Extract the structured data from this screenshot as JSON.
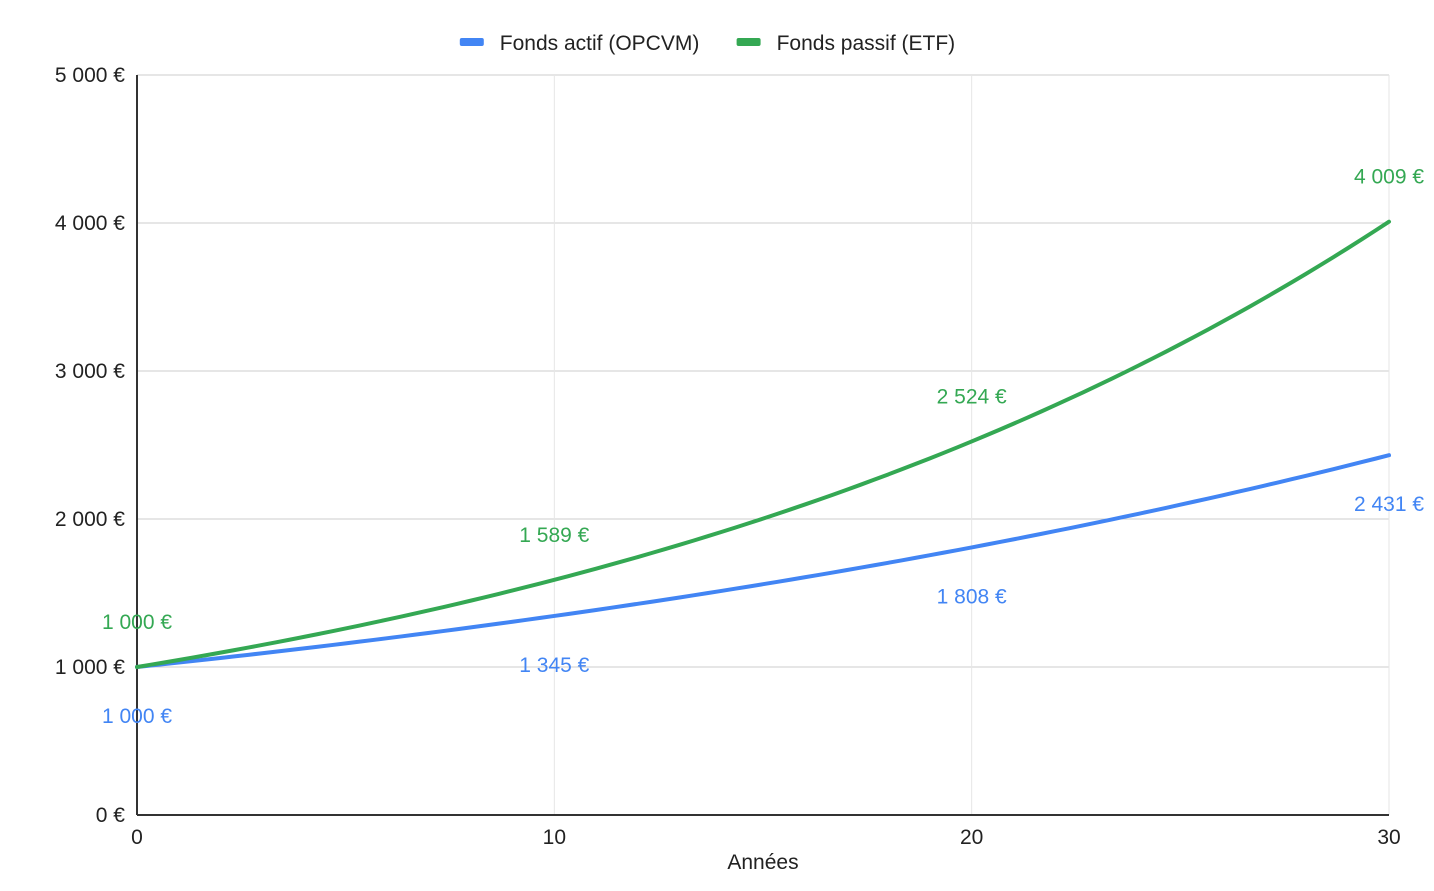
{
  "chart_data": {
    "type": "line",
    "title": "",
    "xlabel": "Années",
    "ylabel": "",
    "xlim": [
      0,
      30
    ],
    "ylim": [
      0,
      5000
    ],
    "x_ticks": [
      0,
      10,
      20,
      30
    ],
    "x_tick_labels": [
      "0",
      "10",
      "20",
      "30"
    ],
    "y_ticks": [
      0,
      1000,
      2000,
      3000,
      4000,
      5000
    ],
    "y_tick_labels": [
      "0 €",
      "1 000 €",
      "2 000 €",
      "3 000 €",
      "4 000 €",
      "5 000 €"
    ],
    "grid": true,
    "legend_position": "top",
    "series": [
      {
        "name": "Fonds actif (OPCVM)",
        "color": "#4285f4",
        "x": [
          0,
          10,
          20,
          30
        ],
        "y": [
          1000,
          1345,
          1808,
          2431
        ],
        "data_labels": [
          "1 000 €",
          "1 345 €",
          "1 808 €",
          "2 431 €"
        ],
        "label_side": "below"
      },
      {
        "name": "Fonds passif (ETF)",
        "color": "#34a853",
        "x": [
          0,
          10,
          20,
          30
        ],
        "y": [
          1000,
          1589,
          2524,
          4009
        ],
        "data_labels": [
          "1 000 €",
          "1 589 €",
          "2 524 €",
          "4 009 €"
        ],
        "label_side": "above"
      }
    ]
  }
}
